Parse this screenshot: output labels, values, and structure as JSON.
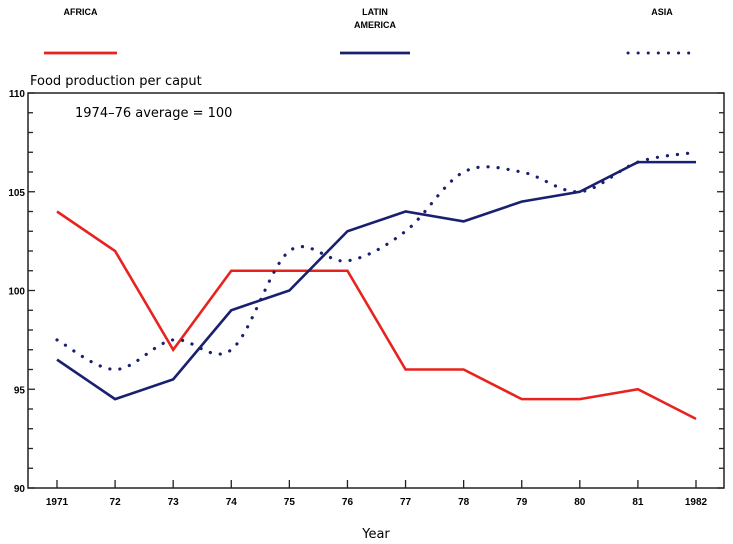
{
  "chart_data": {
    "type": "line",
    "title": "Food production per caput",
    "annotation": "1974–76 average = 100",
    "xlabel": "Year",
    "ylabel": "Food production per caput",
    "x": [
      1971,
      1972,
      1973,
      1974,
      1975,
      1976,
      1977,
      1978,
      1979,
      1980,
      1981,
      1982
    ],
    "x_tick_labels": [
      "1971",
      "72",
      "73",
      "74",
      "75",
      "76",
      "77",
      "78",
      "79",
      "80",
      "81",
      "1982"
    ],
    "y_tick_labels": [
      "90",
      "95",
      "100",
      "105",
      "110"
    ],
    "y_ticks": [
      90,
      95,
      100,
      105,
      110
    ],
    "ylim": [
      90,
      110
    ],
    "y_minor_step": 1,
    "grid": false,
    "legend_position": "top",
    "series": [
      {
        "name": "AFRICA",
        "label_lines": [
          "AFRICA"
        ],
        "color": "#e8231f",
        "style": "solid",
        "values": [
          104,
          102,
          97,
          101,
          101,
          101,
          96,
          96,
          94.5,
          94.5,
          95,
          93.5
        ]
      },
      {
        "name": "LATIN AMERICA",
        "label_lines": [
          "LATIN",
          "AMERICA"
        ],
        "color": "#1a2070",
        "style": "solid",
        "values": [
          96.5,
          94.5,
          95.5,
          99,
          100,
          103,
          104,
          103.5,
          104.5,
          105,
          106.5,
          106.5
        ]
      },
      {
        "name": "ASIA",
        "label_lines": [
          "ASIA"
        ],
        "color": "#1a2070",
        "style": "dotted",
        "values": [
          97.5,
          96,
          97.5,
          97,
          102,
          101.5,
          103,
          106,
          106,
          105,
          106.5,
          107
        ]
      }
    ]
  }
}
